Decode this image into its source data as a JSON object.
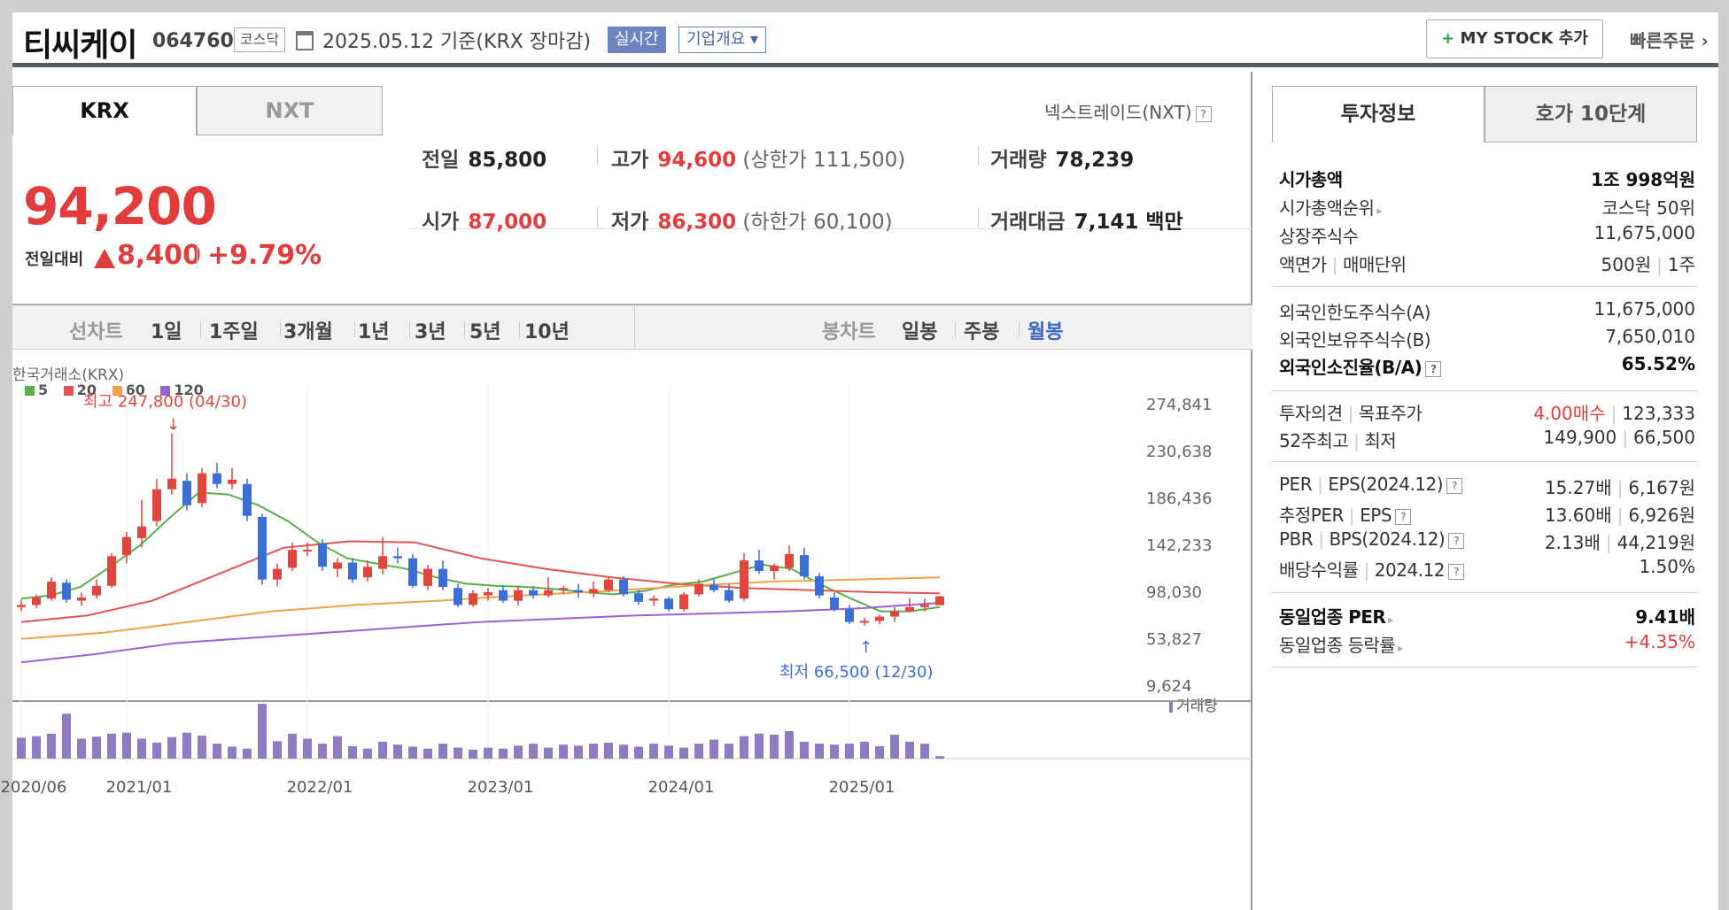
{
  "header": {
    "stock_name": "티씨케이",
    "stock_code": "064760",
    "market": "코스닥",
    "date_text": "2025.05.12  기준(KRX 장마감)",
    "realtime_button": "실시간",
    "company_button": "기업개요 ▾",
    "mystock_button": "MY STOCK 추가",
    "mystock_plus": "+",
    "quick_order": "빠른주문 ›"
  },
  "exchange_tabs": {
    "krx": "KRX",
    "nxt": "NXT"
  },
  "nxt_label": "넥스트레이드(NXT)",
  "quote": {
    "price": "94,200",
    "change_label": "전일대비",
    "change": "8,400",
    "change_pct": "+9.79%",
    "prev_close_label": "전일",
    "prev_close": "85,800",
    "high_label": "고가",
    "high": "94,600",
    "upper_limit": "(상한가 111,500)",
    "volume_label": "거래량",
    "volume": "78,239",
    "open_label": "시가",
    "open": "87,000",
    "low_label": "저가",
    "low": "86,300",
    "lower_limit": "(하한가 60,100)",
    "amount_label": "거래대금",
    "amount": "7,141 백만"
  },
  "period_bar": {
    "line_label": "선차트",
    "line_periods": [
      "1일",
      "1주일",
      "3개월",
      "1년",
      "3년",
      "5년",
      "10년"
    ],
    "candle_label": "봉차트",
    "candle_periods": [
      "일봉",
      "주봉",
      "월봉"
    ],
    "active": "월봉"
  },
  "chart_meta": {
    "exchange": "한국거래소(KRX)",
    "legend": [
      {
        "label": "5",
        "color": "#59b04a"
      },
      {
        "label": "20",
        "color": "#e15454"
      },
      {
        "label": "60",
        "color": "#f0a14a"
      },
      {
        "label": "120",
        "color": "#9a62d6"
      }
    ],
    "high_annotation": "최고 247,800 (04/30)",
    "low_annotation": "최저 66,500 (12/30)",
    "volume_label": "거래량",
    "up_color": "#e0463d",
    "down_color": "#3b6fd6",
    "volume_color": "#8e7cc3"
  },
  "chart_data": {
    "type": "candlestick",
    "title": "티씨케이 월봉",
    "period": "monthly",
    "y_ticks": [
      "274,841",
      "230,638",
      "186,436",
      "142,233",
      "98,030",
      "53,827",
      "9,624"
    ],
    "y_tick_values": [
      274841,
      230638,
      186436,
      142233,
      98030,
      53827,
      9624
    ],
    "ylim": [
      9624,
      274841
    ],
    "x_ticks": [
      "2020/06",
      "2021/01",
      "2022/01",
      "2023/01",
      "2024/01",
      "2025/01"
    ],
    "start": "2020/06",
    "candles": [
      [
        84000,
        91000,
        80000,
        86000
      ],
      [
        86000,
        96000,
        83000,
        93000
      ],
      [
        92000,
        112000,
        90000,
        108000
      ],
      [
        107000,
        110000,
        88000,
        91000
      ],
      [
        90000,
        98000,
        85000,
        93000
      ],
      [
        95000,
        110000,
        92000,
        104000
      ],
      [
        104000,
        135000,
        102000,
        132000
      ],
      [
        133000,
        155000,
        125000,
        150000
      ],
      [
        149000,
        185000,
        140000,
        160000
      ],
      [
        165000,
        205000,
        160000,
        195000
      ],
      [
        195000,
        247800,
        190000,
        205000
      ],
      [
        203000,
        210000,
        175000,
        180000
      ],
      [
        182000,
        215000,
        178000,
        210000
      ],
      [
        210000,
        220000,
        196000,
        200000
      ],
      [
        200000,
        215000,
        195000,
        204000
      ],
      [
        200000,
        205000,
        165000,
        170000
      ],
      [
        169000,
        172000,
        105000,
        110000
      ],
      [
        110000,
        125000,
        104000,
        120000
      ],
      [
        121000,
        145000,
        118000,
        138000
      ],
      [
        137000,
        145000,
        132000,
        138000
      ],
      [
        144000,
        148000,
        118000,
        122000
      ],
      [
        120000,
        130000,
        112000,
        126000
      ],
      [
        126000,
        130000,
        107000,
        110000
      ],
      [
        112000,
        128000,
        108000,
        122000
      ],
      [
        120000,
        150000,
        115000,
        132000
      ],
      [
        132000,
        140000,
        125000,
        130000
      ],
      [
        130000,
        134000,
        102000,
        104000
      ],
      [
        104000,
        124000,
        100000,
        120000
      ],
      [
        120000,
        128000,
        100000,
        103000
      ],
      [
        102000,
        106000,
        84000,
        86000
      ],
      [
        86000,
        100000,
        84000,
        97000
      ],
      [
        95000,
        102000,
        90000,
        98000
      ],
      [
        100000,
        104000,
        88000,
        90000
      ],
      [
        90000,
        104000,
        85000,
        100000
      ],
      [
        100000,
        104000,
        92000,
        95000
      ],
      [
        95000,
        112000,
        93000,
        100000
      ],
      [
        100000,
        104000,
        96000,
        102000
      ],
      [
        100000,
        106000,
        93000,
        98000
      ],
      [
        97000,
        108000,
        93000,
        101000
      ],
      [
        100000,
        112000,
        98000,
        110000
      ],
      [
        110000,
        113000,
        94000,
        96000
      ],
      [
        97000,
        100000,
        86000,
        89000
      ],
      [
        90000,
        95000,
        85000,
        92000
      ],
      [
        92000,
        94000,
        80000,
        82000
      ],
      [
        82000,
        98000,
        80000,
        96000
      ],
      [
        96000,
        110000,
        94000,
        106000
      ],
      [
        105000,
        110000,
        98000,
        100000
      ],
      [
        100000,
        106000,
        88000,
        90000
      ],
      [
        92000,
        135000,
        90000,
        128000
      ],
      [
        128000,
        138000,
        115000,
        118000
      ],
      [
        118000,
        125000,
        110000,
        123000
      ],
      [
        121000,
        142000,
        118000,
        134000
      ],
      [
        133000,
        140000,
        110000,
        113000
      ],
      [
        113000,
        116000,
        92000,
        95000
      ],
      [
        93000,
        98000,
        80000,
        82000
      ],
      [
        82000,
        86000,
        68000,
        70000
      ],
      [
        70000,
        74000,
        66500,
        71000
      ],
      [
        71000,
        77000,
        68000,
        75000
      ],
      [
        75000,
        84000,
        70000,
        80000
      ],
      [
        80000,
        92000,
        79000,
        84000
      ],
      [
        84000,
        92000,
        80000,
        86000
      ],
      [
        85800,
        94600,
        86300,
        94200
      ]
    ],
    "moving_averages": {
      "5": [
        92000,
        95000,
        103000,
        122000,
        142000,
        168000,
        192000,
        190000,
        180000,
        165000,
        145000,
        130000,
        125000,
        120000,
        112000,
        106000,
        104000,
        103000,
        101000,
        98000,
        96000,
        99000,
        105000,
        108000,
        116000,
        124000,
        120000,
        105000,
        92000,
        80000,
        80000,
        84000
      ],
      "20": [
        70000,
        76000,
        90000,
        115000,
        140000,
        146000,
        145000,
        130000,
        120000,
        112000,
        106000,
        102000,
        100000,
        98000,
        97000
      ],
      "60": [
        54000,
        60000,
        70000,
        80000,
        86000,
        90000,
        95000,
        99000,
        104000,
        108000,
        110000,
        112000
      ],
      "120": [
        32000,
        40000,
        50000,
        55000,
        60000,
        65000,
        70000,
        73000,
        76000,
        78000,
        80000,
        83000,
        88000
      ]
    },
    "volume": [
      42,
      45,
      50,
      90,
      40,
      44,
      50,
      52,
      40,
      32,
      43,
      52,
      46,
      30,
      24,
      20,
      110,
      35,
      50,
      40,
      30,
      45,
      25,
      20,
      34,
      28,
      24,
      20,
      30,
      22,
      18,
      22,
      20,
      26,
      30,
      22,
      28,
      26,
      30,
      32,
      28,
      24,
      30,
      26,
      22,
      30,
      38,
      30,
      45,
      50,
      48,
      55,
      34,
      30,
      28,
      30,
      34,
      25,
      48,
      34,
      30,
      5
    ]
  },
  "invest_tabs": {
    "info": "투자정보",
    "hoga": "호가 10단계"
  },
  "invest_info": {
    "market_cap_label": "시가총액",
    "market_cap": "1조 998억원",
    "cap_rank_label": "시가총액순위",
    "cap_rank": "코스닥 50위",
    "shares_label": "상장주식수",
    "shares": "11,675,000",
    "par_label": "액면가",
    "trade_unit_label": "매매단위",
    "par": "500원",
    "trade_unit": "1주",
    "foreign_limit_label": "외국인한도주식수(A)",
    "foreign_limit": "11,675,000",
    "foreign_hold_label": "외국인보유주식수(B)",
    "foreign_hold": "7,650,010",
    "foreign_ratio_label": "외국인소진율(B/A)",
    "foreign_ratio": "65.52%",
    "opinion_label": "투자의견",
    "target_label": "목표주가",
    "opinion": "4.00매수",
    "target": "123,333",
    "week52_high_label": "52주최고",
    "week52_low_label": "최저",
    "week52_high": "149,900",
    "week52_low": "66,500",
    "per_label": "PER",
    "eps_label": "EPS(2024.12)",
    "per": "15.27배",
    "eps": "6,167원",
    "fper_label": "추정PER",
    "feps_label": "EPS",
    "fper": "13.60배",
    "feps": "6,926원",
    "pbr_label": "PBR",
    "bps_label": "BPS(2024.12)",
    "pbr": "2.13배",
    "bps": "44,219원",
    "div_label": "배당수익률",
    "div_date": "2024.12",
    "div": "1.50%",
    "sector_per_label": "동일업종 PER",
    "sector_per": "9.41배",
    "sector_chg_label": "동일업종 등락률",
    "sector_chg": "+4.35%"
  }
}
